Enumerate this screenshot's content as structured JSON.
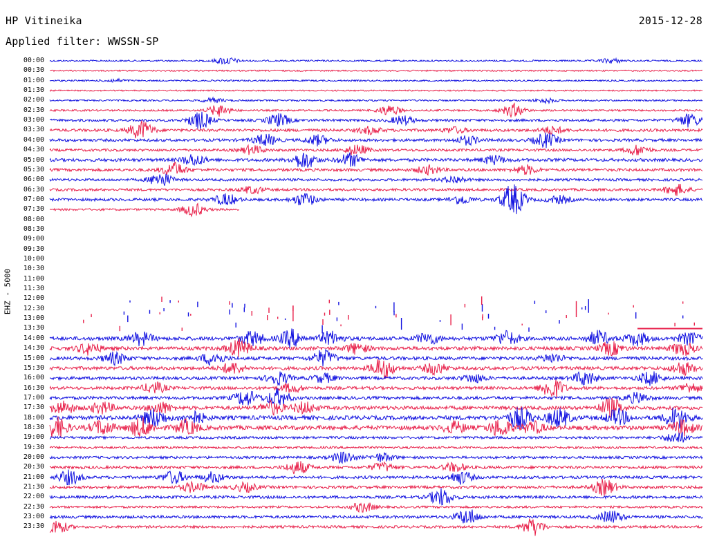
{
  "header": {
    "station": "HP Vitineika",
    "date": "2015-12-28",
    "filter": "Applied filter: WWSSN-SP"
  },
  "channel_label": "EHZ - 5000",
  "colors": {
    "blue": "#1010e0",
    "red": "#e8204a",
    "background": "#ffffff",
    "text": "#000000"
  },
  "chart_data": {
    "type": "line",
    "title": "",
    "y_axis_label": "EHZ - 5000",
    "time_labels": [
      "00:00",
      "00:30",
      "01:00",
      "01:30",
      "02:00",
      "02:30",
      "03:00",
      "03:30",
      "04:00",
      "04:30",
      "05:00",
      "05:30",
      "06:00",
      "06:30",
      "07:00",
      "07:30",
      "08:00",
      "08:30",
      "09:00",
      "09:30",
      "10:00",
      "10:30",
      "11:00",
      "11:30",
      "12:00",
      "12:30",
      "13:00",
      "13:30",
      "14:00",
      "14:30",
      "15:00",
      "15:30",
      "16:00",
      "16:30",
      "17:00",
      "17:30",
      "18:00",
      "18:30",
      "19:00",
      "19:30",
      "20:00",
      "20:30",
      "21:00",
      "21:30",
      "22:00",
      "22:30",
      "23:00",
      "23:30"
    ],
    "series_colors": [
      "#1010e0",
      "#e8204a"
    ],
    "traces": [
      {
        "time": "00:00",
        "noise": 1.2,
        "events": [
          {
            "pos": 0.27,
            "amp": 5
          },
          {
            "pos": 0.86,
            "amp": 3
          }
        ]
      },
      {
        "time": "00:30",
        "noise": 1.0,
        "events": []
      },
      {
        "time": "01:00",
        "noise": 1.1,
        "events": [
          {
            "pos": 0.1,
            "amp": 2
          }
        ]
      },
      {
        "time": "01:30",
        "noise": 1.0,
        "events": []
      },
      {
        "time": "02:00",
        "noise": 1.2,
        "events": [
          {
            "pos": 0.25,
            "amp": 3
          },
          {
            "pos": 0.76,
            "amp": 3
          }
        ]
      },
      {
        "time": "02:30",
        "noise": 1.3,
        "events": [
          {
            "pos": 0.26,
            "amp": 8
          },
          {
            "pos": 0.52,
            "amp": 7
          },
          {
            "pos": 0.71,
            "amp": 9
          }
        ]
      },
      {
        "time": "03:00",
        "noise": 1.8,
        "events": [
          {
            "pos": 0.23,
            "amp": 12
          },
          {
            "pos": 0.35,
            "amp": 9
          },
          {
            "pos": 0.54,
            "amp": 6
          },
          {
            "pos": 0.98,
            "amp": 9
          }
        ]
      },
      {
        "time": "03:30",
        "noise": 2.0,
        "events": [
          {
            "pos": 0.14,
            "amp": 13
          },
          {
            "pos": 0.49,
            "amp": 5
          },
          {
            "pos": 0.62,
            "amp": 4
          },
          {
            "pos": 0.77,
            "amp": 5
          }
        ]
      },
      {
        "time": "04:00",
        "noise": 2.0,
        "events": [
          {
            "pos": 0.33,
            "amp": 8
          },
          {
            "pos": 0.41,
            "amp": 7
          },
          {
            "pos": 0.64,
            "amp": 6
          },
          {
            "pos": 0.76,
            "amp": 10
          }
        ]
      },
      {
        "time": "04:30",
        "noise": 1.8,
        "events": [
          {
            "pos": 0.31,
            "amp": 6
          },
          {
            "pos": 0.47,
            "amp": 7
          },
          {
            "pos": 0.9,
            "amp": 7
          }
        ]
      },
      {
        "time": "05:00",
        "noise": 2.2,
        "events": [
          {
            "pos": 0.22,
            "amp": 8
          },
          {
            "pos": 0.39,
            "amp": 12
          },
          {
            "pos": 0.46,
            "amp": 9
          },
          {
            "pos": 0.68,
            "amp": 6
          }
        ]
      },
      {
        "time": "05:30",
        "noise": 2.0,
        "events": [
          {
            "pos": 0.19,
            "amp": 10
          },
          {
            "pos": 0.58,
            "amp": 6
          },
          {
            "pos": 0.73,
            "amp": 6
          }
        ]
      },
      {
        "time": "06:00",
        "noise": 1.8,
        "events": [
          {
            "pos": 0.17,
            "amp": 10
          },
          {
            "pos": 0.62,
            "amp": 5
          }
        ]
      },
      {
        "time": "06:30",
        "noise": 1.8,
        "events": [
          {
            "pos": 0.31,
            "amp": 5
          },
          {
            "pos": 0.96,
            "amp": 8
          }
        ]
      },
      {
        "time": "07:00",
        "noise": 2.0,
        "events": [
          {
            "pos": 0.27,
            "amp": 8
          },
          {
            "pos": 0.39,
            "amp": 9
          },
          {
            "pos": 0.63,
            "amp": 6
          },
          {
            "pos": 0.71,
            "amp": 22
          },
          {
            "pos": 0.78,
            "amp": 5
          }
        ]
      },
      {
        "time": "07:30",
        "noise": 1.5,
        "events": [
          {
            "pos": 0.22,
            "amp": 9
          }
        ],
        "end": 0.29
      },
      {
        "time": "08:00",
        "noise": 0,
        "events": []
      },
      {
        "time": "08:30",
        "noise": 0,
        "events": []
      },
      {
        "time": "09:00",
        "noise": 0,
        "events": []
      },
      {
        "time": "09:30",
        "noise": 0,
        "events": []
      },
      {
        "time": "10:00",
        "noise": 0,
        "events": []
      },
      {
        "time": "10:30",
        "noise": 0,
        "events": []
      },
      {
        "time": "11:00",
        "noise": 0,
        "events": []
      },
      {
        "time": "11:30",
        "noise": 0,
        "events": []
      },
      {
        "time": "12:00",
        "noise": 0,
        "events": []
      },
      {
        "time": "12:30",
        "noise": 0,
        "events": []
      },
      {
        "time": "13:00",
        "noise": 0,
        "events": []
      },
      {
        "time": "13:30",
        "noise": 0,
        "events": [],
        "gappy": true
      },
      {
        "time": "14:00",
        "noise": 2.6,
        "events": [
          {
            "pos": 0.14,
            "amp": 9
          },
          {
            "pos": 0.31,
            "amp": 10
          },
          {
            "pos": 0.37,
            "amp": 12
          },
          {
            "pos": 0.43,
            "amp": 9
          },
          {
            "pos": 0.58,
            "amp": 8
          },
          {
            "pos": 0.7,
            "amp": 10
          },
          {
            "pos": 0.84,
            "amp": 10
          },
          {
            "pos": 0.9,
            "amp": 9
          },
          {
            "pos": 0.98,
            "amp": 8
          }
        ]
      },
      {
        "time": "14:30",
        "noise": 2.6,
        "events": [
          {
            "pos": 0.06,
            "amp": 8
          },
          {
            "pos": 0.29,
            "amp": 12
          },
          {
            "pos": 0.47,
            "amp": 7
          },
          {
            "pos": 0.86,
            "amp": 9
          },
          {
            "pos": 0.97,
            "amp": 9
          }
        ]
      },
      {
        "time": "15:00",
        "noise": 2.4,
        "events": [
          {
            "pos": 0.1,
            "amp": 8
          },
          {
            "pos": 0.25,
            "amp": 9
          },
          {
            "pos": 0.42,
            "amp": 11
          },
          {
            "pos": 0.77,
            "amp": 6
          }
        ]
      },
      {
        "time": "15:30",
        "noise": 2.4,
        "events": [
          {
            "pos": 0.28,
            "amp": 8
          },
          {
            "pos": 0.51,
            "amp": 14
          },
          {
            "pos": 0.59,
            "amp": 8
          },
          {
            "pos": 0.97,
            "amp": 9
          }
        ]
      },
      {
        "time": "16:00",
        "noise": 2.2,
        "events": [
          {
            "pos": 0.35,
            "amp": 9
          },
          {
            "pos": 0.42,
            "amp": 6
          },
          {
            "pos": 0.65,
            "amp": 6
          },
          {
            "pos": 0.82,
            "amp": 10
          },
          {
            "pos": 0.92,
            "amp": 9
          }
        ]
      },
      {
        "time": "16:30",
        "noise": 2.2,
        "events": [
          {
            "pos": 0.16,
            "amp": 8
          },
          {
            "pos": 0.37,
            "amp": 6
          },
          {
            "pos": 0.77,
            "amp": 15
          },
          {
            "pos": 0.98,
            "amp": 7
          }
        ]
      },
      {
        "time": "17:00",
        "noise": 2.2,
        "events": [
          {
            "pos": 0.3,
            "amp": 11
          },
          {
            "pos": 0.35,
            "amp": 12
          },
          {
            "pos": 0.9,
            "amp": 7
          }
        ]
      },
      {
        "time": "17:30",
        "noise": 2.6,
        "events": [
          {
            "pos": 0.02,
            "amp": 9
          },
          {
            "pos": 0.08,
            "amp": 8
          },
          {
            "pos": 0.17,
            "amp": 8
          },
          {
            "pos": 0.34,
            "amp": 9
          },
          {
            "pos": 0.39,
            "amp": 8
          },
          {
            "pos": 0.86,
            "amp": 13
          }
        ]
      },
      {
        "time": "18:00",
        "noise": 3.0,
        "events": [
          {
            "pos": 0.16,
            "amp": 13
          },
          {
            "pos": 0.22,
            "amp": 9
          },
          {
            "pos": 0.72,
            "amp": 15
          },
          {
            "pos": 0.78,
            "amp": 13
          },
          {
            "pos": 0.87,
            "amp": 11
          },
          {
            "pos": 0.96,
            "amp": 15
          }
        ]
      },
      {
        "time": "18:30",
        "noise": 3.0,
        "events": [
          {
            "pos": 0.01,
            "amp": 14
          },
          {
            "pos": 0.08,
            "amp": 10
          },
          {
            "pos": 0.14,
            "amp": 13
          },
          {
            "pos": 0.21,
            "amp": 10
          },
          {
            "pos": 0.62,
            "amp": 8
          },
          {
            "pos": 0.69,
            "amp": 12
          },
          {
            "pos": 0.74,
            "amp": 8
          },
          {
            "pos": 0.97,
            "amp": 10
          }
        ]
      },
      {
        "time": "19:00",
        "noise": 1.8,
        "events": [
          {
            "pos": 0.96,
            "amp": 8
          }
        ]
      },
      {
        "time": "19:30",
        "noise": 1.6,
        "events": []
      },
      {
        "time": "20:00",
        "noise": 1.8,
        "events": [
          {
            "pos": 0.45,
            "amp": 8
          },
          {
            "pos": 0.51,
            "amp": 6
          }
        ]
      },
      {
        "time": "20:30",
        "noise": 2.0,
        "events": [
          {
            "pos": 0.38,
            "amp": 9
          },
          {
            "pos": 0.51,
            "amp": 6
          },
          {
            "pos": 0.62,
            "amp": 6
          }
        ]
      },
      {
        "time": "21:00",
        "noise": 2.0,
        "events": [
          {
            "pos": 0.03,
            "amp": 10
          },
          {
            "pos": 0.19,
            "amp": 9
          },
          {
            "pos": 0.25,
            "amp": 7
          },
          {
            "pos": 0.63,
            "amp": 9
          }
        ]
      },
      {
        "time": "21:30",
        "noise": 2.0,
        "events": [
          {
            "pos": 0.22,
            "amp": 7
          },
          {
            "pos": 0.3,
            "amp": 6
          },
          {
            "pos": 0.85,
            "amp": 11
          }
        ]
      },
      {
        "time": "22:00",
        "noise": 2.0,
        "events": [
          {
            "pos": 0.6,
            "amp": 12
          }
        ]
      },
      {
        "time": "22:30",
        "noise": 1.6,
        "events": [
          {
            "pos": 0.48,
            "amp": 7
          }
        ]
      },
      {
        "time": "23:00",
        "noise": 2.0,
        "events": [
          {
            "pos": 0.64,
            "amp": 11
          },
          {
            "pos": 0.86,
            "amp": 9
          }
        ]
      },
      {
        "time": "23:30",
        "noise": 1.8,
        "events": [
          {
            "pos": 0.01,
            "amp": 10
          },
          {
            "pos": 0.74,
            "amp": 12
          }
        ]
      }
    ]
  }
}
